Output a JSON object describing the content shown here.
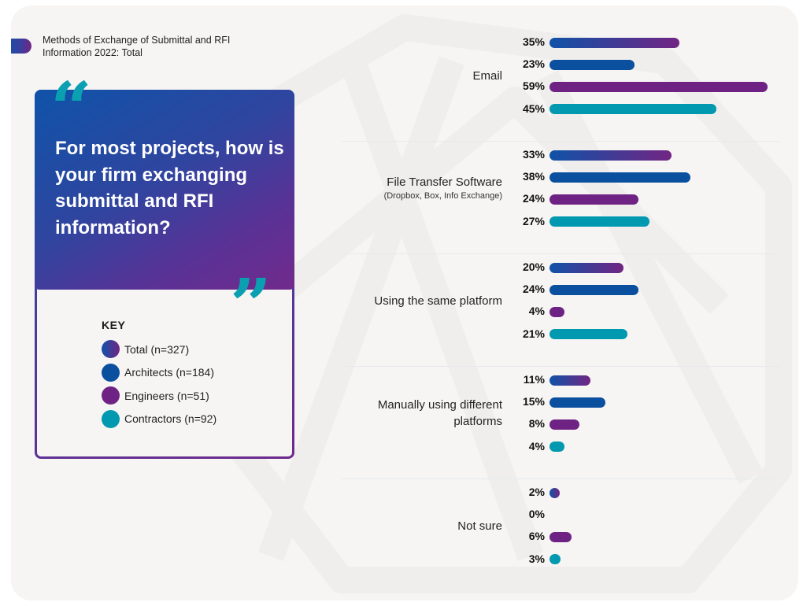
{
  "title": "Methods of Exchange of Submittal and RFI Information 2022: Total",
  "question": "For most projects, how is your firm exchanging submittal and RFI information?",
  "quote_open": "“",
  "quote_close": "”",
  "key": {
    "title": "KEY",
    "items": [
      {
        "label": "Total (n=327)",
        "color": "gradient:#0f52a8-#722583"
      },
      {
        "label": "Architects (n=184)",
        "color": "#0b4f9f"
      },
      {
        "label": "Engineers (n=51)",
        "color": "#6e2384"
      },
      {
        "label": "Contractors (n=92)",
        "color": "#0099b0"
      }
    ]
  },
  "colors": {
    "total_start": "#0f52a8",
    "total_end": "#722583",
    "architects": "#0b4f9f",
    "engineers": "#6e2384",
    "contractors": "#0099b0"
  },
  "chart_data": {
    "type": "bar",
    "orientation": "horizontal",
    "title": "Methods of Exchange of Submittal and RFI Information 2022: Total",
    "xlabel": "",
    "ylabel": "",
    "unit": "%",
    "xlim": [
      0,
      60
    ],
    "grid": false,
    "legend": "left panel",
    "categories": [
      {
        "label": "Email",
        "sublabel": ""
      },
      {
        "label": "File Transfer Software",
        "sublabel": "(Dropbox, Box, Info Exchange)"
      },
      {
        "label": "Using the same platform",
        "sublabel": ""
      },
      {
        "label": "Manually using different platforms",
        "sublabel": ""
      },
      {
        "label": "Not sure",
        "sublabel": ""
      }
    ],
    "series": [
      {
        "name": "Total (n=327)",
        "key": "total",
        "values": [
          35,
          33,
          20,
          11,
          2
        ]
      },
      {
        "name": "Architects (n=184)",
        "key": "architects",
        "values": [
          23,
          38,
          24,
          15,
          0
        ]
      },
      {
        "name": "Engineers (n=51)",
        "key": "engineers",
        "values": [
          59,
          24,
          4,
          8,
          6
        ]
      },
      {
        "name": "Contractors (n=92)",
        "key": "contractors",
        "values": [
          45,
          27,
          21,
          4,
          3
        ]
      }
    ]
  }
}
